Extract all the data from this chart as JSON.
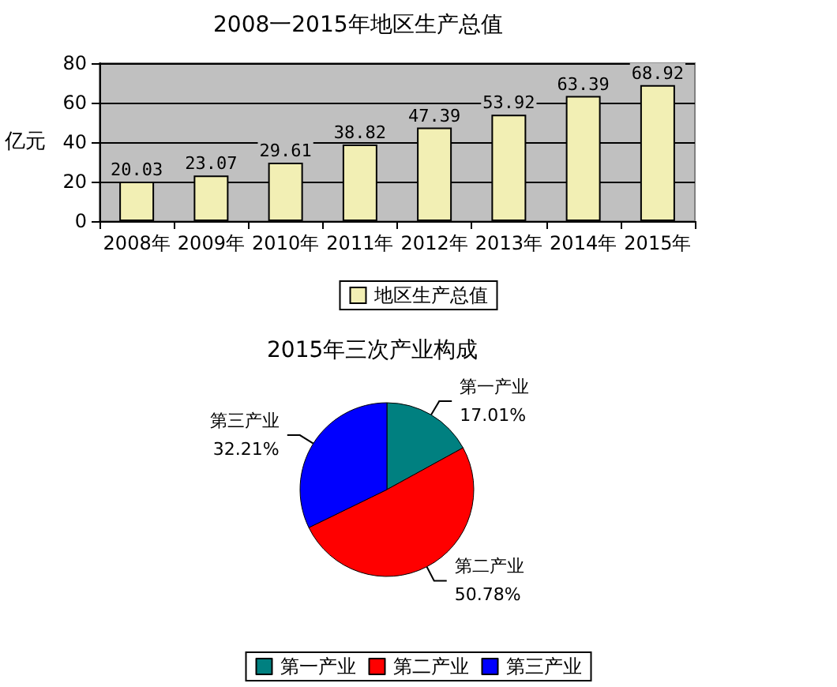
{
  "chart_data": [
    {
      "type": "bar",
      "title": "2008一2015年地区生产总值",
      "ylabel": "亿元",
      "categories": [
        "2008年",
        "2009年",
        "2010年",
        "2011年",
        "2012年",
        "2013年",
        "2014年",
        "2015年"
      ],
      "series": [
        {
          "name": "地区生产总值",
          "color": "#f2efb4",
          "values": [
            20.03,
            23.07,
            29.61,
            38.82,
            47.39,
            53.92,
            63.39,
            68.92
          ]
        }
      ],
      "ylim": [
        0,
        80
      ],
      "yticks": [
        0,
        20,
        40,
        60,
        80
      ],
      "grid": "y",
      "data_labels": true,
      "legend": "bottom"
    },
    {
      "type": "pie",
      "title": "2015年三次产业构成",
      "categories": [
        "第一产业",
        "第二产业",
        "第三产业"
      ],
      "values": [
        17.01,
        50.78,
        32.21
      ],
      "colors": [
        "#008080",
        "#ff0000",
        "#0000ff"
      ],
      "value_labels": [
        "17.01%",
        "50.78%",
        "32.21%"
      ],
      "legend": "bottom"
    }
  ]
}
